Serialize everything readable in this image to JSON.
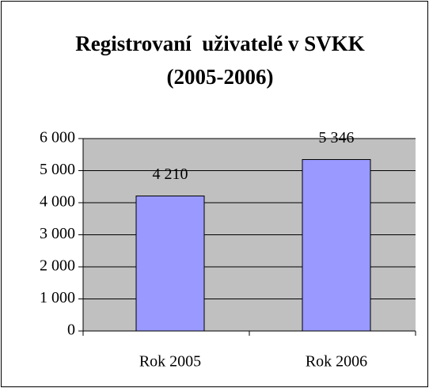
{
  "chart_data": {
    "type": "bar",
    "title": [
      "Registrovaní  uživatelé v SVKK",
      "(2005-2006)"
    ],
    "categories": [
      "Rok 2005",
      "Rok 2006"
    ],
    "values": [
      4210,
      5346
    ],
    "value_labels": [
      "4 210",
      "5 346"
    ],
    "color": "#9999ff",
    "ylim": [
      0,
      6000
    ],
    "yticks": [
      0,
      {
        "value": 1000,
        "label": "1 000"
      },
      {
        "value": 2000,
        "label": "2 000"
      },
      {
        "value": 3000,
        "label": "3 000"
      },
      {
        "value": 4000,
        "label": "4 000"
      },
      {
        "value": 5000,
        "label": "5 000"
      },
      {
        "value": 6000,
        "label": "6 000"
      }
    ],
    "grid": true
  }
}
